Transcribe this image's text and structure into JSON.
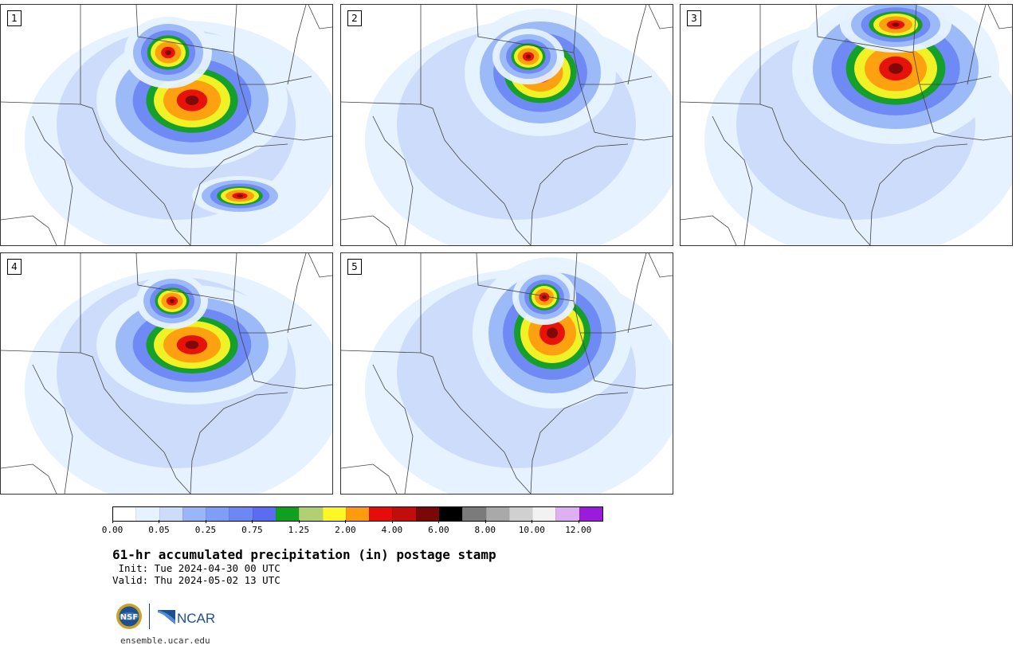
{
  "panels": [
    {
      "number": "1"
    },
    {
      "number": "2"
    },
    {
      "number": "3"
    },
    {
      "number": "4"
    },
    {
      "number": "5"
    }
  ],
  "colorbar": {
    "colors": [
      "#ffffff",
      "#e6f2ff",
      "#cddcfa",
      "#98b6f8",
      "#7e9ef8",
      "#6d87f4",
      "#5c6cf0",
      "#10a020",
      "#b1d074",
      "#fdf725",
      "#fd9c0f",
      "#e60c0c",
      "#c30c0c",
      "#7a0808",
      "#000000",
      "#7b7b7b",
      "#a9a9a9",
      "#d0d0d0",
      "#f2f2f2",
      "#dcb0f1",
      "#9a1bdc"
    ],
    "tick_labels": [
      "0.00",
      "0.05",
      "0.25",
      "0.75",
      "1.25",
      "2.00",
      "4.00",
      "6.00",
      "8.00",
      "10.00",
      "12.00"
    ]
  },
  "title": "61-hr accumulated precipitation (in) postage stamp",
  "init_line": " Init: Tue 2024-04-30 00 UTC",
  "valid_line": "Valid: Thu 2024-05-02 13 UTC",
  "logos": {
    "nsf": "NSF",
    "ncar": "NCAR"
  },
  "footer": "ensemble.ucar.edu"
}
